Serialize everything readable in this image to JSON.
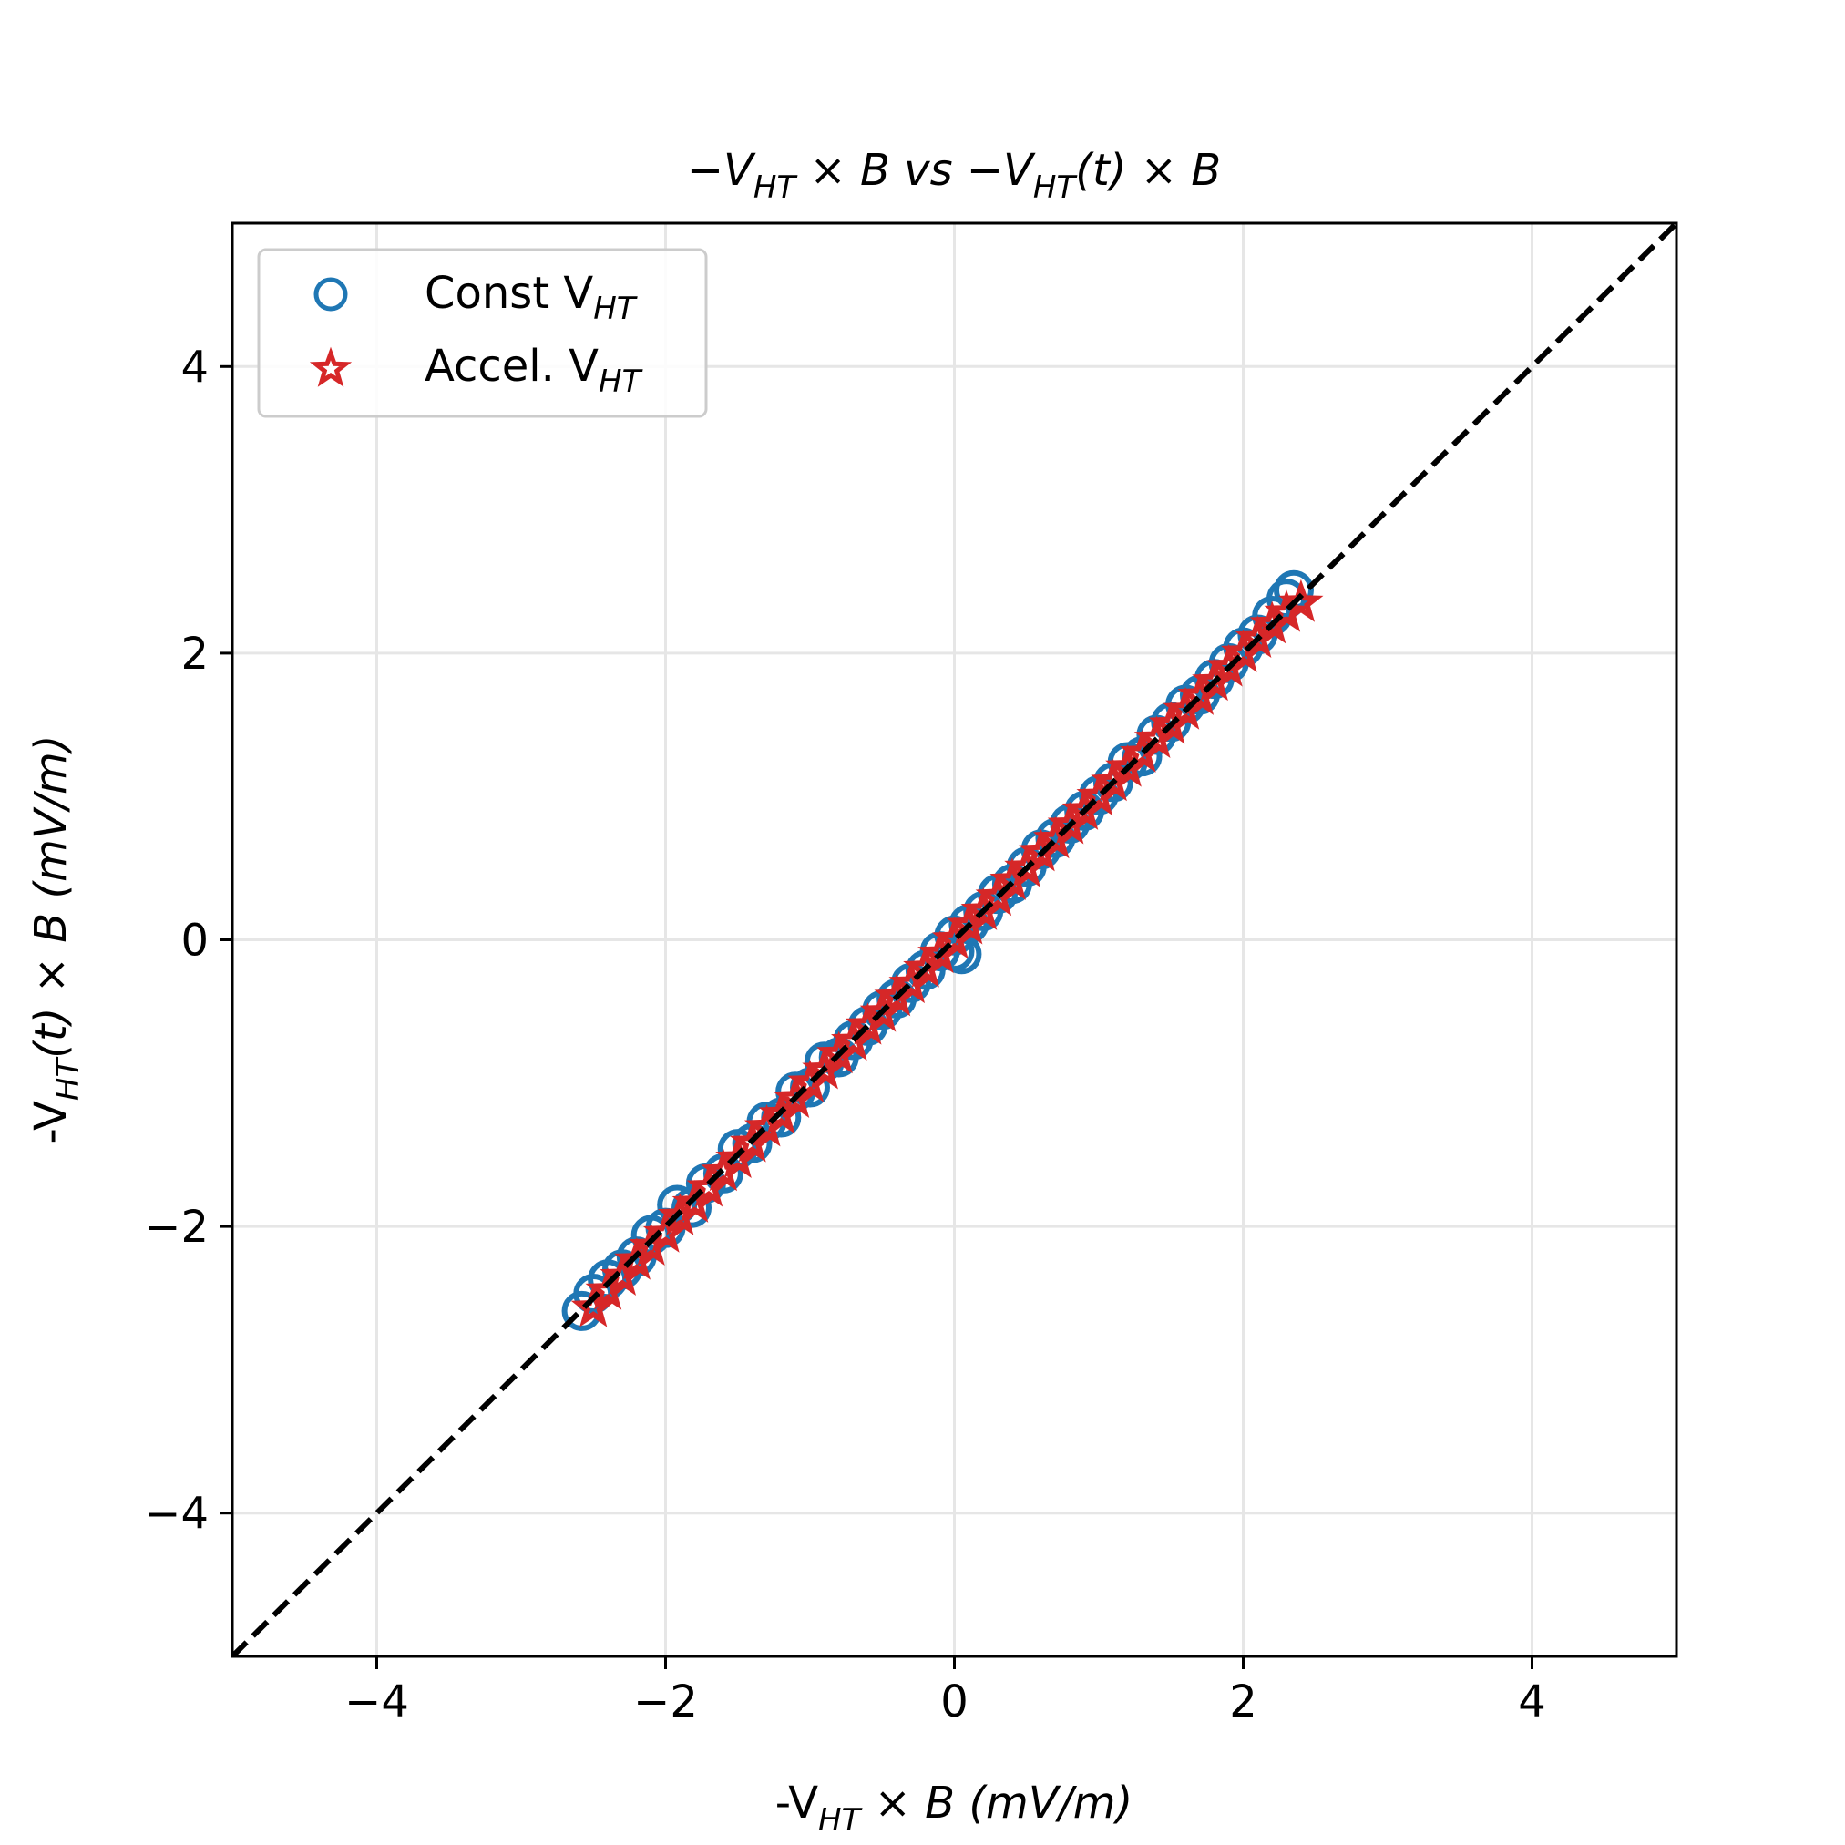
{
  "chart_data": {
    "type": "scatter",
    "title": {
      "pre": "−V",
      "sub1": "HT",
      "mid": " × B vs −V",
      "sub2": "HT",
      "post": "(t) × B"
    },
    "xlabel": {
      "pre": "-V",
      "sub": "HT",
      "mid": " × B ",
      "post": "(mV/m)"
    },
    "ylabel": {
      "pre": "-V",
      "sub": "HT",
      "mid": "(t) × B ",
      "post": "(mV/m)"
    },
    "xlim": [
      -5,
      5
    ],
    "ylim": [
      -5,
      5
    ],
    "x_ticks": [
      -4,
      -2,
      0,
      2,
      4
    ],
    "y_ticks": [
      -4,
      -2,
      0,
      2,
      4
    ],
    "x_tick_labels": [
      "−4",
      "−2",
      "0",
      "2",
      "4"
    ],
    "y_tick_labels": [
      "−4",
      "−2",
      "0",
      "2",
      "4"
    ],
    "grid": true,
    "legend_position": "top-left",
    "reference_line": {
      "x": [
        -5,
        5
      ],
      "y": [
        -5,
        5
      ],
      "style": "dashed",
      "color": "#000000"
    },
    "series": [
      {
        "name": "Const V",
        "name_sub": "HT",
        "marker": "circle-open",
        "color": "#1f77b4",
        "points": [
          [
            -2.58,
            -2.59
          ],
          [
            -2.5,
            -2.47
          ],
          [
            -2.4,
            -2.37
          ],
          [
            -2.3,
            -2.3
          ],
          [
            -2.2,
            -2.21
          ],
          [
            -2.1,
            -2.06
          ],
          [
            -2.0,
            -2.01
          ],
          [
            -1.92,
            -1.85
          ],
          [
            -1.82,
            -1.87
          ],
          [
            -1.72,
            -1.7
          ],
          [
            -1.6,
            -1.63
          ],
          [
            -1.5,
            -1.46
          ],
          [
            -1.4,
            -1.42
          ],
          [
            -1.3,
            -1.27
          ],
          [
            -1.2,
            -1.24
          ],
          [
            -1.1,
            -1.06
          ],
          [
            -1.0,
            -1.03
          ],
          [
            -0.9,
            -0.85
          ],
          [
            -0.8,
            -0.82
          ],
          [
            -0.7,
            -0.7
          ],
          [
            -0.6,
            -0.6
          ],
          [
            -0.5,
            -0.49
          ],
          [
            -0.4,
            -0.41
          ],
          [
            -0.3,
            -0.3
          ],
          [
            -0.2,
            -0.21
          ],
          [
            -0.1,
            -0.08
          ],
          [
            0.0,
            0.03
          ],
          [
            0.0,
            -0.08
          ],
          [
            0.05,
            -0.1
          ],
          [
            0.1,
            0.11
          ],
          [
            0.2,
            0.2
          ],
          [
            0.3,
            0.32
          ],
          [
            0.4,
            0.39
          ],
          [
            0.5,
            0.51
          ],
          [
            0.6,
            0.63
          ],
          [
            0.7,
            0.71
          ],
          [
            0.8,
            0.81
          ],
          [
            0.9,
            0.9
          ],
          [
            1.0,
            1.01
          ],
          [
            1.1,
            1.1
          ],
          [
            1.2,
            1.24
          ],
          [
            1.3,
            1.28
          ],
          [
            1.4,
            1.43
          ],
          [
            1.5,
            1.52
          ],
          [
            1.6,
            1.64
          ],
          [
            1.7,
            1.71
          ],
          [
            1.8,
            1.82
          ],
          [
            1.9,
            1.93
          ],
          [
            2.0,
            2.04
          ],
          [
            2.1,
            2.13
          ],
          [
            2.2,
            2.26
          ],
          [
            2.3,
            2.38
          ],
          [
            2.35,
            2.44
          ]
        ]
      },
      {
        "name": "Accel. V",
        "name_sub": "HT",
        "marker": "star-open",
        "color": "#d62728",
        "points": [
          [
            -2.5,
            -2.57
          ],
          [
            -2.4,
            -2.45
          ],
          [
            -2.3,
            -2.35
          ],
          [
            -2.2,
            -2.24
          ],
          [
            -2.1,
            -2.14
          ],
          [
            -2.0,
            -2.05
          ],
          [
            -1.9,
            -1.93
          ],
          [
            -1.8,
            -1.84
          ],
          [
            -1.7,
            -1.73
          ],
          [
            -1.6,
            -1.62
          ],
          [
            -1.5,
            -1.53
          ],
          [
            -1.4,
            -1.42
          ],
          [
            -1.3,
            -1.31
          ],
          [
            -1.2,
            -1.22
          ],
          [
            -1.1,
            -1.11
          ],
          [
            -1.0,
            -1.0
          ],
          [
            -0.9,
            -0.91
          ],
          [
            -0.8,
            -0.8
          ],
          [
            -0.7,
            -0.71
          ],
          [
            -0.6,
            -0.6
          ],
          [
            -0.5,
            -0.51
          ],
          [
            -0.4,
            -0.4
          ],
          [
            -0.3,
            -0.31
          ],
          [
            -0.2,
            -0.2
          ],
          [
            -0.1,
            -0.1
          ],
          [
            0.0,
            0.0
          ],
          [
            0.1,
            0.1
          ],
          [
            0.2,
            0.2
          ],
          [
            0.3,
            0.3
          ],
          [
            0.4,
            0.41
          ],
          [
            0.5,
            0.5
          ],
          [
            0.6,
            0.61
          ],
          [
            0.7,
            0.7
          ],
          [
            0.8,
            0.8
          ],
          [
            0.9,
            0.9
          ],
          [
            1.0,
            1.0
          ],
          [
            1.1,
            1.1
          ],
          [
            1.2,
            1.2
          ],
          [
            1.3,
            1.3
          ],
          [
            1.4,
            1.4
          ],
          [
            1.5,
            1.5
          ],
          [
            1.6,
            1.6
          ],
          [
            1.7,
            1.7
          ],
          [
            1.8,
            1.8
          ],
          [
            1.9,
            1.9
          ],
          [
            2.0,
            2.0
          ],
          [
            2.1,
            2.1
          ],
          [
            2.2,
            2.2
          ],
          [
            2.3,
            2.28
          ],
          [
            2.4,
            2.35
          ]
        ]
      }
    ]
  },
  "colors": {
    "grid": "#e6e6e6",
    "axes": "#000000",
    "legend_border": "#cccccc"
  }
}
